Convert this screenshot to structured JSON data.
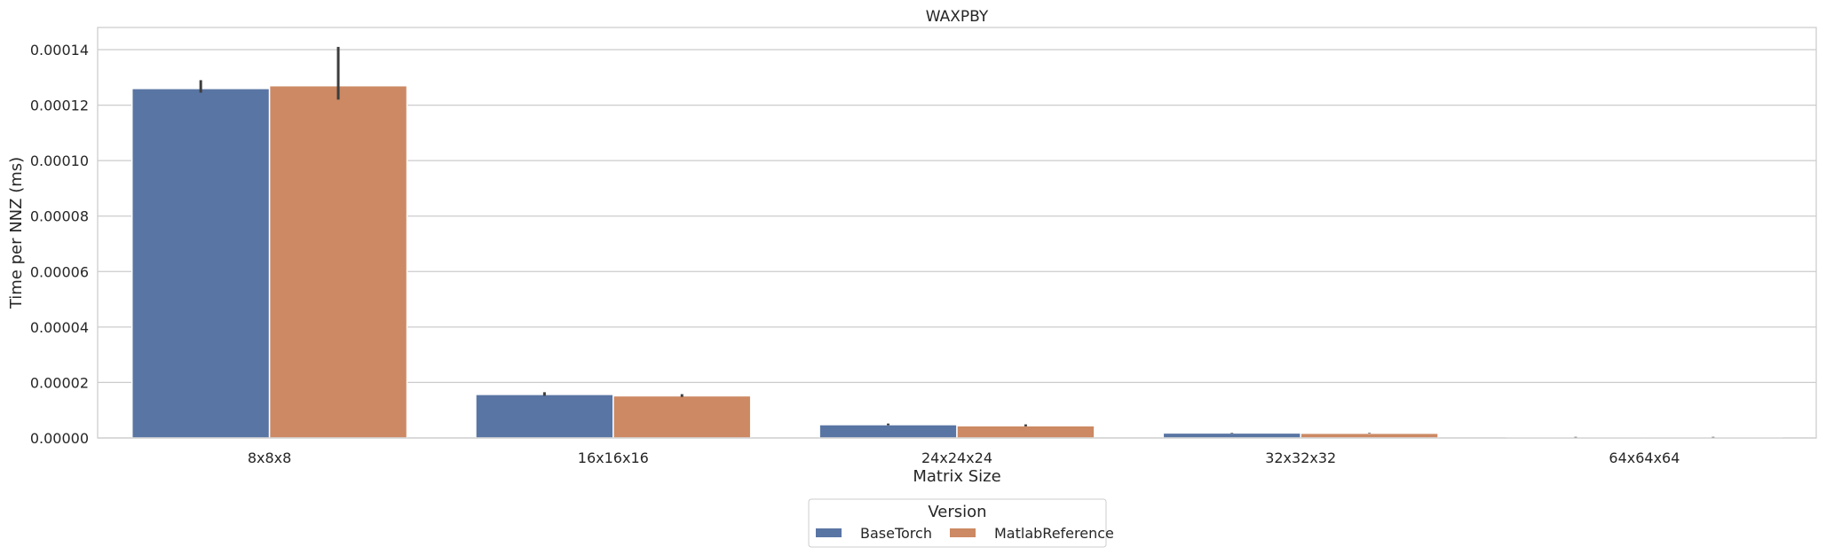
{
  "chart_data": {
    "type": "bar",
    "title": "WAXPBY",
    "xlabel": "Matrix Size",
    "ylabel": "Time per NNZ (ms)",
    "categories": [
      "8x8x8",
      "16x16x16",
      "24x24x24",
      "32x32x32",
      "64x64x64"
    ],
    "ylim": [
      0,
      0.000148
    ],
    "yticks": [
      0,
      2e-05,
      4e-05,
      6e-05,
      8e-05,
      0.0001,
      0.00012,
      0.00014
    ],
    "ytick_labels": [
      "0.00000",
      "0.00002",
      "0.00004",
      "0.00006",
      "0.00008",
      "0.00010",
      "0.00012",
      "0.00014"
    ],
    "grid": true,
    "legend": {
      "title": "Version",
      "placement": "bottom-center"
    },
    "series": [
      {
        "name": "BaseTorch",
        "color": "#5975a4",
        "values": [
          0.000126,
          1.57e-05,
          4.8e-06,
          1.8e-06,
          3e-07
        ],
        "err_low": [
          0.0001245,
          1.52e-05,
          4.6e-06,
          1.7e-06,
          2e-07
        ],
        "err_high": [
          0.000129,
          1.65e-05,
          5.2e-06,
          1.9e-06,
          4e-07
        ]
      },
      {
        "name": "MatlabReference",
        "color": "#cc8963",
        "values": [
          0.000127,
          1.52e-05,
          4.4e-06,
          1.7e-06,
          3e-07
        ],
        "err_low": [
          0.000122,
          1.48e-05,
          4.2e-06,
          1.6e-06,
          2e-07
        ],
        "err_high": [
          0.000141,
          1.58e-05,
          4.9e-06,
          1.8e-06,
          4e-07
        ]
      }
    ]
  }
}
